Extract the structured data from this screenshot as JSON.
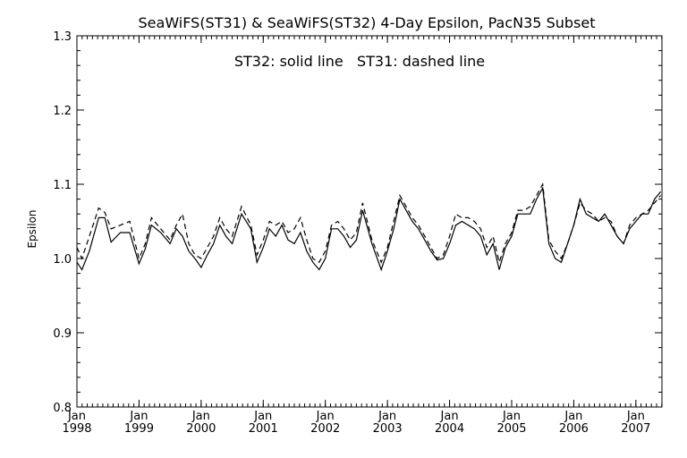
{
  "chart_data": {
    "type": "line",
    "title": "SeaWiFS(ST31) & SeaWiFS(ST32) 4-Day Epsilon, PacN35 Subset",
    "annotation": "ST32: solid line   ST31: dashed line",
    "ylabel": "Epsilon",
    "xlabel": "",
    "ylim": [
      0.8,
      1.3
    ],
    "xlim": [
      1998.0,
      2007.42
    ],
    "yticks": [
      "0.8",
      "0.9",
      "1.0",
      "1.1",
      "1.2",
      "1.3"
    ],
    "xticks": [
      {
        "value": 1998,
        "month": "Jan",
        "year": "1998"
      },
      {
        "value": 1999,
        "month": "Jan",
        "year": "1999"
      },
      {
        "value": 2000,
        "month": "Jan",
        "year": "2000"
      },
      {
        "value": 2001,
        "month": "Jan",
        "year": "2001"
      },
      {
        "value": 2002,
        "month": "Jan",
        "year": "2002"
      },
      {
        "value": 2003,
        "month": "Jan",
        "year": "2003"
      },
      {
        "value": 2004,
        "month": "Jan",
        "year": "2004"
      },
      {
        "value": 2005,
        "month": "Jan",
        "year": "2005"
      },
      {
        "value": 2006,
        "month": "Jan",
        "year": "2006"
      },
      {
        "value": 2007,
        "month": "Jan",
        "year": "2007"
      }
    ],
    "grid": false,
    "series": [
      {
        "style": "solid",
        "x": [
          1998.0,
          1998.08,
          1998.2,
          1998.35,
          1998.45,
          1998.55,
          1998.7,
          1998.85,
          1999.0,
          1999.1,
          1999.2,
          1999.35,
          1999.5,
          1999.6,
          1999.7,
          1999.8,
          1999.9,
          2000.0,
          2000.1,
          2000.2,
          2000.3,
          2000.4,
          2000.5,
          2000.65,
          2000.8,
          2000.9,
          2001.0,
          2001.1,
          2001.2,
          2001.3,
          2001.4,
          2001.5,
          2001.6,
          2001.7,
          2001.8,
          2001.9,
          2002.0,
          2002.1,
          2002.2,
          2002.3,
          2002.4,
          2002.5,
          2002.6,
          2002.75,
          2002.9,
          2003.0,
          2003.1,
          2003.2,
          2003.3,
          2003.4,
          2003.5,
          2003.6,
          2003.7,
          2003.8,
          2003.9,
          2004.0,
          2004.1,
          2004.2,
          2004.3,
          2004.4,
          2004.5,
          2004.6,
          2004.7,
          2004.8,
          2004.9,
          2005.0,
          2005.1,
          2005.2,
          2005.3,
          2005.4,
          2005.5,
          2005.6,
          2005.7,
          2005.8,
          2005.9,
          2006.0,
          2006.1,
          2006.2,
          2006.3,
          2006.4,
          2006.5,
          2006.6,
          2006.7,
          2006.8,
          2006.9,
          2007.0,
          2007.1,
          2007.2,
          2007.3,
          2007.4
        ],
        "y": [
          0.995,
          0.985,
          1.01,
          1.055,
          1.055,
          1.022,
          1.035,
          1.035,
          0.993,
          1.013,
          1.045,
          1.035,
          1.02,
          1.04,
          1.03,
          1.01,
          1.0,
          0.988,
          1.005,
          1.02,
          1.045,
          1.03,
          1.02,
          1.06,
          1.04,
          0.995,
          1.015,
          1.04,
          1.03,
          1.045,
          1.025,
          1.02,
          1.035,
          1.01,
          0.995,
          0.985,
          1.0,
          1.04,
          1.04,
          1.03,
          1.015,
          1.025,
          1.065,
          1.02,
          0.985,
          1.01,
          1.04,
          1.08,
          1.065,
          1.05,
          1.04,
          1.025,
          1.01,
          0.998,
          1.0,
          1.02,
          1.045,
          1.05,
          1.045,
          1.04,
          1.03,
          1.005,
          1.02,
          0.985,
          1.015,
          1.03,
          1.06,
          1.06,
          1.06,
          1.08,
          1.095,
          1.02,
          1.0,
          0.995,
          1.02,
          1.045,
          1.08,
          1.06,
          1.055,
          1.05,
          1.06,
          1.045,
          1.03,
          1.02,
          1.04,
          1.05,
          1.06,
          1.06,
          1.08,
          1.09
        ]
      },
      {
        "style": "dashed",
        "x": [
          1998.0,
          1998.08,
          1998.2,
          1998.35,
          1998.45,
          1998.55,
          1998.7,
          1998.85,
          1999.0,
          1999.1,
          1999.2,
          1999.35,
          1999.5,
          1999.6,
          1999.7,
          1999.8,
          1999.9,
          2000.0,
          2000.1,
          2000.2,
          2000.3,
          2000.4,
          2000.5,
          2000.65,
          2000.8,
          2000.9,
          2001.0,
          2001.1,
          2001.2,
          2001.3,
          2001.4,
          2001.5,
          2001.6,
          2001.7,
          2001.8,
          2001.9,
          2002.0,
          2002.1,
          2002.2,
          2002.3,
          2002.4,
          2002.5,
          2002.6,
          2002.75,
          2002.9,
          2003.0,
          2003.1,
          2003.2,
          2003.3,
          2003.4,
          2003.5,
          2003.6,
          2003.7,
          2003.8,
          2003.9,
          2004.0,
          2004.1,
          2004.2,
          2004.3,
          2004.4,
          2004.5,
          2004.6,
          2004.7,
          2004.8,
          2004.9,
          2005.0,
          2005.1,
          2005.2,
          2005.3,
          2005.4,
          2005.5,
          2005.6,
          2005.7,
          2005.8,
          2005.9,
          2006.0,
          2006.1,
          2006.2,
          2006.3,
          2006.4,
          2006.5,
          2006.6,
          2006.7,
          2006.8,
          2006.9,
          2007.0,
          2007.1,
          2007.2,
          2007.3,
          2007.4
        ],
        "y": [
          1.015,
          1.0,
          1.03,
          1.068,
          1.062,
          1.04,
          1.045,
          1.05,
          1.0,
          1.02,
          1.055,
          1.04,
          1.025,
          1.045,
          1.06,
          1.02,
          1.005,
          1.0,
          1.015,
          1.03,
          1.055,
          1.04,
          1.03,
          1.07,
          1.045,
          1.005,
          1.025,
          1.05,
          1.045,
          1.05,
          1.035,
          1.04,
          1.055,
          1.025,
          1.0,
          0.995,
          1.01,
          1.045,
          1.05,
          1.04,
          1.025,
          1.035,
          1.075,
          1.025,
          0.995,
          1.015,
          1.05,
          1.085,
          1.07,
          1.055,
          1.045,
          1.03,
          1.015,
          1.0,
          1.005,
          1.03,
          1.06,
          1.055,
          1.055,
          1.05,
          1.04,
          1.015,
          1.03,
          0.995,
          1.02,
          1.035,
          1.065,
          1.065,
          1.07,
          1.085,
          1.1,
          1.025,
          1.01,
          1.0,
          1.02,
          1.045,
          1.075,
          1.065,
          1.06,
          1.05,
          1.055,
          1.05,
          1.03,
          1.02,
          1.045,
          1.055,
          1.06,
          1.065,
          1.075,
          1.085
        ]
      }
    ]
  }
}
